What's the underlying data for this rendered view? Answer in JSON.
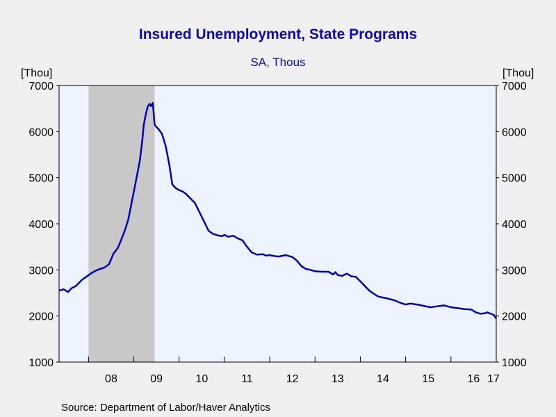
{
  "chart_data": {
    "type": "line",
    "title": "Insured Unemployment, State Programs",
    "subtitle": "SA, Thous",
    "ylabel_left": "[Thou]",
    "ylabel_right": "[Thou]",
    "source": "Source:  Department of Labor/Haver Analytics",
    "ylim": [
      1000,
      7000
    ],
    "yticks": [
      1000,
      2000,
      3000,
      4000,
      5000,
      6000,
      7000
    ],
    "xlim": [
      2007.35,
      2017.0
    ],
    "xticks": [
      {
        "label": "08",
        "x": 2008.5
      },
      {
        "label": "09",
        "x": 2009.5
      },
      {
        "label": "10",
        "x": 2010.5
      },
      {
        "label": "11",
        "x": 2011.5
      },
      {
        "label": "12",
        "x": 2012.5
      },
      {
        "label": "13",
        "x": 2013.5
      },
      {
        "label": "14",
        "x": 2014.5
      },
      {
        "label": "15",
        "x": 2015.5
      },
      {
        "label": "16",
        "x": 2016.5
      },
      {
        "label": "17",
        "x": 2017.5
      }
    ],
    "recession": {
      "start": 2008.0,
      "end": 2009.46
    },
    "colors": {
      "line": "#0000b4",
      "plot_bg": "#eef4ff",
      "recession": "#c8c8c8",
      "title": "#0a0ab4"
    },
    "series": [
      {
        "name": "",
        "x": [
          2007.35,
          2007.45,
          2007.55,
          2007.62,
          2007.72,
          2007.85,
          2007.95,
          2008.05,
          2008.15,
          2008.25,
          2008.35,
          2008.45,
          2008.55,
          2008.65,
          2008.72,
          2008.8,
          2008.88,
          2008.95,
          2009.02,
          2009.08,
          2009.13,
          2009.18,
          2009.22,
          2009.27,
          2009.31,
          2009.35,
          2009.38,
          2009.42,
          2009.46,
          2009.5,
          2009.55,
          2009.62,
          2009.7,
          2009.78,
          2009.85,
          2009.92,
          2010.0,
          2010.08,
          2010.15,
          2010.25,
          2010.35,
          2010.45,
          2010.55,
          2010.65,
          2010.75,
          2010.85,
          2010.95,
          2011.0,
          2011.08,
          2011.2,
          2011.3,
          2011.4,
          2011.5,
          2011.6,
          2011.72,
          2011.85,
          2011.92,
          2012.0,
          2012.1,
          2012.2,
          2012.35,
          2012.5,
          2012.6,
          2012.7,
          2012.75,
          2012.8,
          2012.9,
          2013.0,
          2013.15,
          2013.3,
          2013.4,
          2013.45,
          2013.5,
          2013.6,
          2013.7,
          2013.8,
          2013.9,
          2014.0,
          2014.1,
          2014.2,
          2014.3,
          2014.4,
          2014.5,
          2014.6,
          2014.75,
          2014.9,
          2015.0,
          2015.1,
          2015.25,
          2015.4,
          2015.55,
          2015.7,
          2015.85,
          2016.0,
          2016.15,
          2016.3,
          2016.45,
          2016.55,
          2016.65,
          2016.75,
          2016.8,
          2016.88,
          2016.95,
          2017.0
        ],
        "y": [
          2550,
          2580,
          2520,
          2600,
          2650,
          2780,
          2850,
          2920,
          2980,
          3020,
          3050,
          3120,
          3350,
          3480,
          3650,
          3850,
          4100,
          4450,
          4800,
          5100,
          5350,
          5750,
          6150,
          6400,
          6550,
          6600,
          6550,
          6620,
          6150,
          6100,
          6050,
          5950,
          5700,
          5300,
          4850,
          4780,
          4730,
          4700,
          4650,
          4550,
          4450,
          4250,
          4050,
          3850,
          3780,
          3750,
          3730,
          3760,
          3720,
          3740,
          3680,
          3640,
          3500,
          3380,
          3330,
          3340,
          3310,
          3320,
          3300,
          3290,
          3320,
          3280,
          3200,
          3080,
          3050,
          3020,
          3000,
          2970,
          2960,
          2960,
          2900,
          2950,
          2890,
          2870,
          2920,
          2860,
          2850,
          2750,
          2650,
          2550,
          2480,
          2420,
          2400,
          2380,
          2340,
          2280,
          2250,
          2270,
          2250,
          2220,
          2190,
          2210,
          2230,
          2190,
          2170,
          2150,
          2140,
          2080,
          2050,
          2060,
          2080,
          2050,
          2020,
          1940
        ]
      }
    ]
  }
}
